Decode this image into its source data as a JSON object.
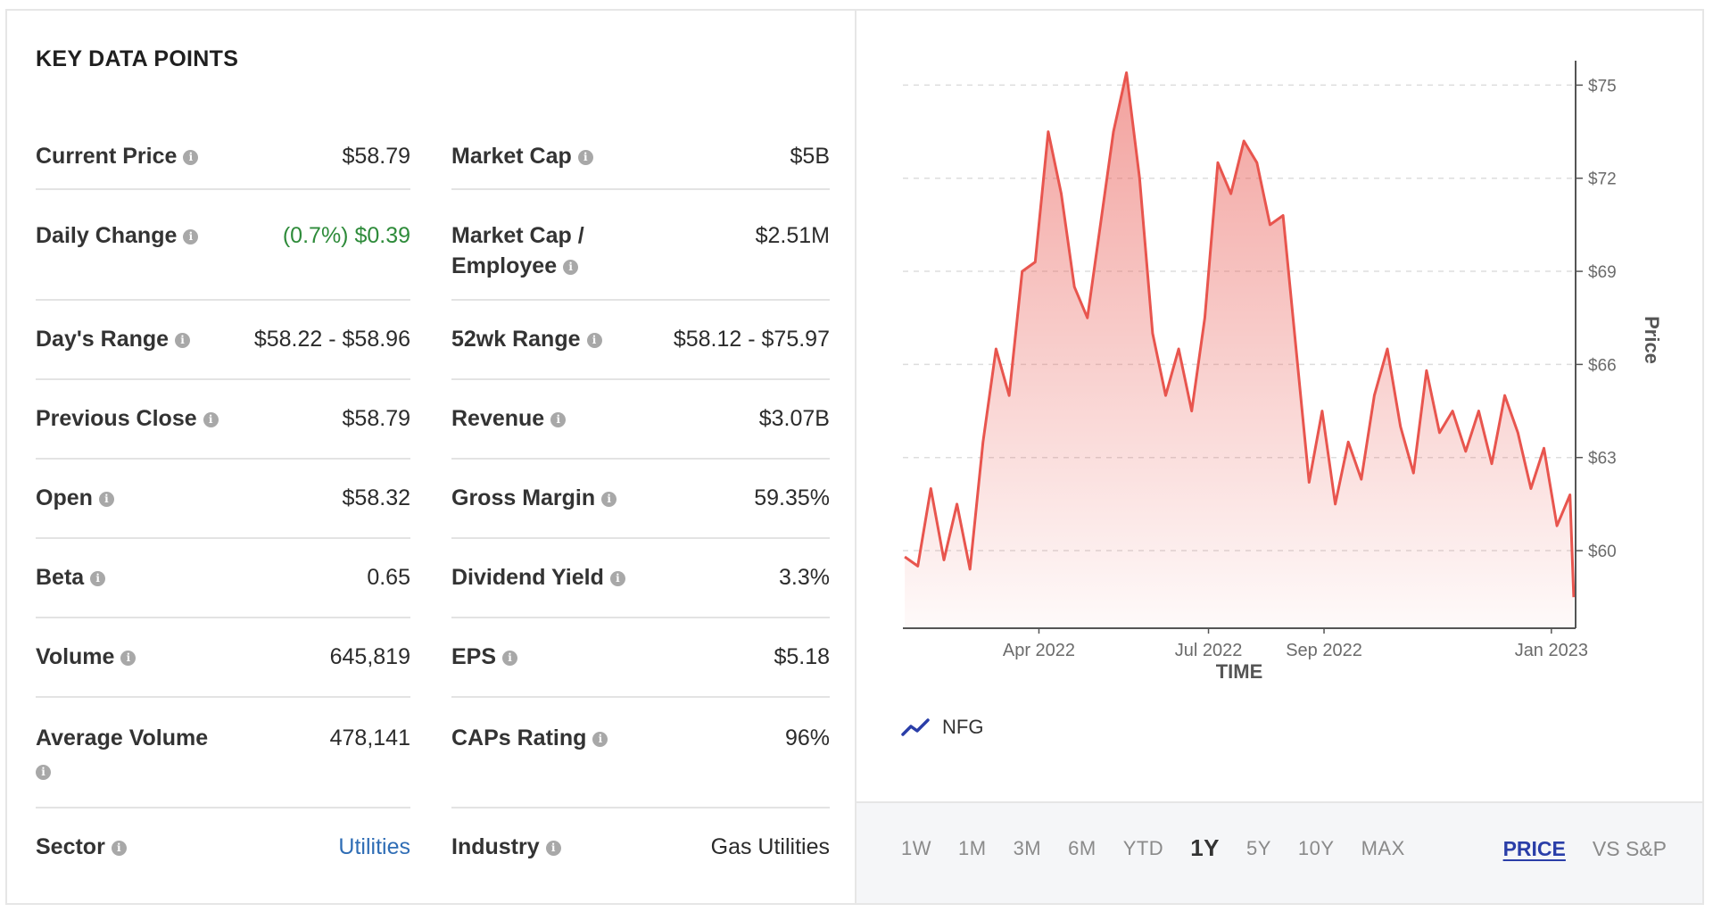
{
  "key_data": {
    "title": "KEY DATA POINTS",
    "info_icon_glyph": "i",
    "left": [
      {
        "label": "Current Price",
        "value": "$58.79"
      },
      {
        "label": "Daily Change",
        "value": "(0.7%) $0.39"
      },
      {
        "label": "Day's Range",
        "value": "$58.22 - $58.96"
      },
      {
        "label": "Previous Close",
        "value": "$58.79"
      },
      {
        "label": "Open",
        "value": "$58.32"
      },
      {
        "label": "Beta",
        "value": "0.65"
      },
      {
        "label": "Volume",
        "value": "645,819"
      },
      {
        "label": "Average Volume",
        "value": "478,141"
      },
      {
        "label": "Sector",
        "value": "Utilities"
      }
    ],
    "right": [
      {
        "label": "Market Cap",
        "value": "$5B"
      },
      {
        "label": "Market Cap / Employee",
        "value": "$2.51M"
      },
      {
        "label": "52wk Range",
        "value": "$58.12 - $75.97"
      },
      {
        "label": "Revenue",
        "value": "$3.07B"
      },
      {
        "label": "Gross Margin",
        "value": "59.35%"
      },
      {
        "label": "Dividend Yield",
        "value": "3.3%"
      },
      {
        "label": "EPS",
        "value": "$5.18"
      },
      {
        "label": "CAPs Rating",
        "value": "96%"
      },
      {
        "label": "Industry",
        "value": "Gas Utilities"
      }
    ],
    "colors": {
      "positive": "#2e8b3a",
      "link": "#2f6db5"
    }
  },
  "chart_data": {
    "type": "area",
    "xlabel": "TIME",
    "ylabel": "Price",
    "ylim": [
      57.5,
      75.5
    ],
    "y_ticks": [
      "$60",
      "$63",
      "$66",
      "$69",
      "$72",
      "$75"
    ],
    "y_tick_values": [
      60,
      63,
      66,
      69,
      72,
      75
    ],
    "x_ticks": [
      "Apr 2022",
      "Jul 2022",
      "Sep 2022",
      "Jan 2023"
    ],
    "x_tick_values": [
      "2022-04-01",
      "2022-07-01",
      "2022-09-01",
      "2023-01-01"
    ],
    "line_color": "#e8554e",
    "grid": true,
    "series": [
      {
        "name": "NFG",
        "x": [
          "2022-01-19",
          "2022-01-26",
          "2022-02-02",
          "2022-02-09",
          "2022-02-16",
          "2022-02-23",
          "2022-03-02",
          "2022-03-09",
          "2022-03-16",
          "2022-03-23",
          "2022-03-30",
          "2022-04-06",
          "2022-04-13",
          "2022-04-20",
          "2022-04-27",
          "2022-05-04",
          "2022-05-11",
          "2022-05-18",
          "2022-05-25",
          "2022-06-01",
          "2022-06-08",
          "2022-06-15",
          "2022-06-22",
          "2022-06-29",
          "2022-07-06",
          "2022-07-13",
          "2022-07-20",
          "2022-07-27",
          "2022-08-03",
          "2022-08-10",
          "2022-08-17",
          "2022-08-24",
          "2022-08-31",
          "2022-09-07",
          "2022-09-14",
          "2022-09-21",
          "2022-09-28",
          "2022-10-05",
          "2022-10-12",
          "2022-10-19",
          "2022-10-26",
          "2022-11-02",
          "2022-11-09",
          "2022-11-16",
          "2022-11-23",
          "2022-11-30",
          "2022-12-07",
          "2022-12-14",
          "2022-12-21",
          "2022-12-28",
          "2023-01-04",
          "2023-01-11",
          "2023-01-13"
        ],
        "values": [
          59.8,
          59.5,
          62.0,
          59.7,
          61.5,
          59.4,
          63.5,
          66.5,
          65.0,
          69.0,
          69.3,
          73.5,
          71.5,
          68.5,
          67.5,
          70.5,
          73.5,
          75.4,
          72.0,
          67.0,
          65.0,
          66.5,
          64.5,
          67.5,
          72.5,
          71.5,
          73.2,
          72.5,
          70.5,
          70.8,
          66.5,
          62.2,
          64.5,
          61.5,
          63.5,
          62.3,
          65.0,
          66.5,
          64.0,
          62.5,
          65.8,
          63.8,
          64.5,
          63.2,
          64.5,
          62.8,
          65.0,
          63.8,
          62.0,
          63.3,
          60.8,
          61.8,
          58.5
        ]
      }
    ]
  },
  "legend": {
    "label": "NFG"
  },
  "time_ranges": [
    "1W",
    "1M",
    "3M",
    "6M",
    "YTD",
    "1Y",
    "5Y",
    "10Y",
    "MAX"
  ],
  "active_range": "1Y",
  "modes": [
    "PRICE",
    "VS S&P"
  ],
  "active_mode": "PRICE"
}
